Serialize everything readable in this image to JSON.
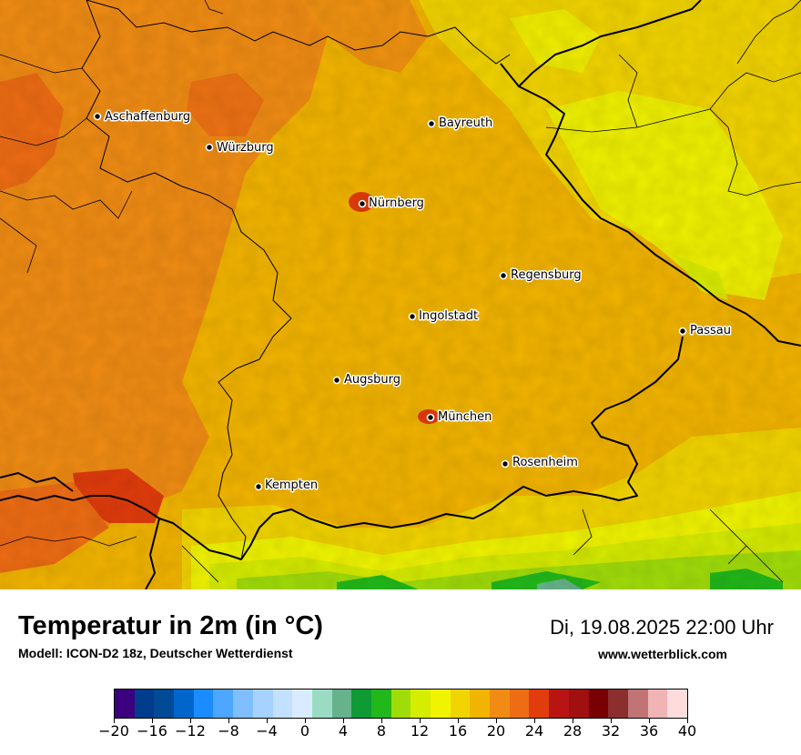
{
  "map": {
    "cities": [
      {
        "name": "Aschaffenburg"
      },
      {
        "name": "Würzburg"
      },
      {
        "name": "Bayreuth"
      },
      {
        "name": "Nürnberg"
      },
      {
        "name": "Regensburg"
      },
      {
        "name": "Ingolstadt"
      },
      {
        "name": "Passau"
      },
      {
        "name": "Augsburg"
      },
      {
        "name": "München"
      },
      {
        "name": "Rosenheim"
      },
      {
        "name": "Kempten"
      }
    ]
  },
  "footer": {
    "title": "Temperatur in 2m (in °C)",
    "subtitle": "Modell: ICON-D2 18z, Deutscher Wetterdienst",
    "datetime": "Di, 19.08.2025 22:00 Uhr",
    "website": "www.wetterblick.com"
  },
  "legend": {
    "colors": [
      "#3b0080",
      "#003c8c",
      "#004a96",
      "#0066cc",
      "#1a8cff",
      "#4da6ff",
      "#7fbfff",
      "#a6d2ff",
      "#c2e0ff",
      "#d9ecff",
      "#99dcc3",
      "#66b28a",
      "#0f9a35",
      "#22b81a",
      "#a0dc0a",
      "#d6ec00",
      "#f0f400",
      "#f2d400",
      "#f2b400",
      "#f08c14",
      "#ee6c14",
      "#e03c0c",
      "#b81414",
      "#a01010",
      "#780000",
      "#8c2e2e",
      "#c07474",
      "#f0b4b4",
      "#ffdcdc"
    ],
    "tick_values": [
      -20,
      -16,
      -12,
      -8,
      -4,
      0,
      4,
      8,
      12,
      16,
      20,
      24,
      28,
      32,
      36,
      40
    ],
    "tick_labels": [
      "−20",
      "−16",
      "−12",
      "−8",
      "−4",
      "0",
      "4",
      "8",
      "12",
      "16",
      "20",
      "24",
      "28",
      "32",
      "36",
      "40"
    ]
  }
}
